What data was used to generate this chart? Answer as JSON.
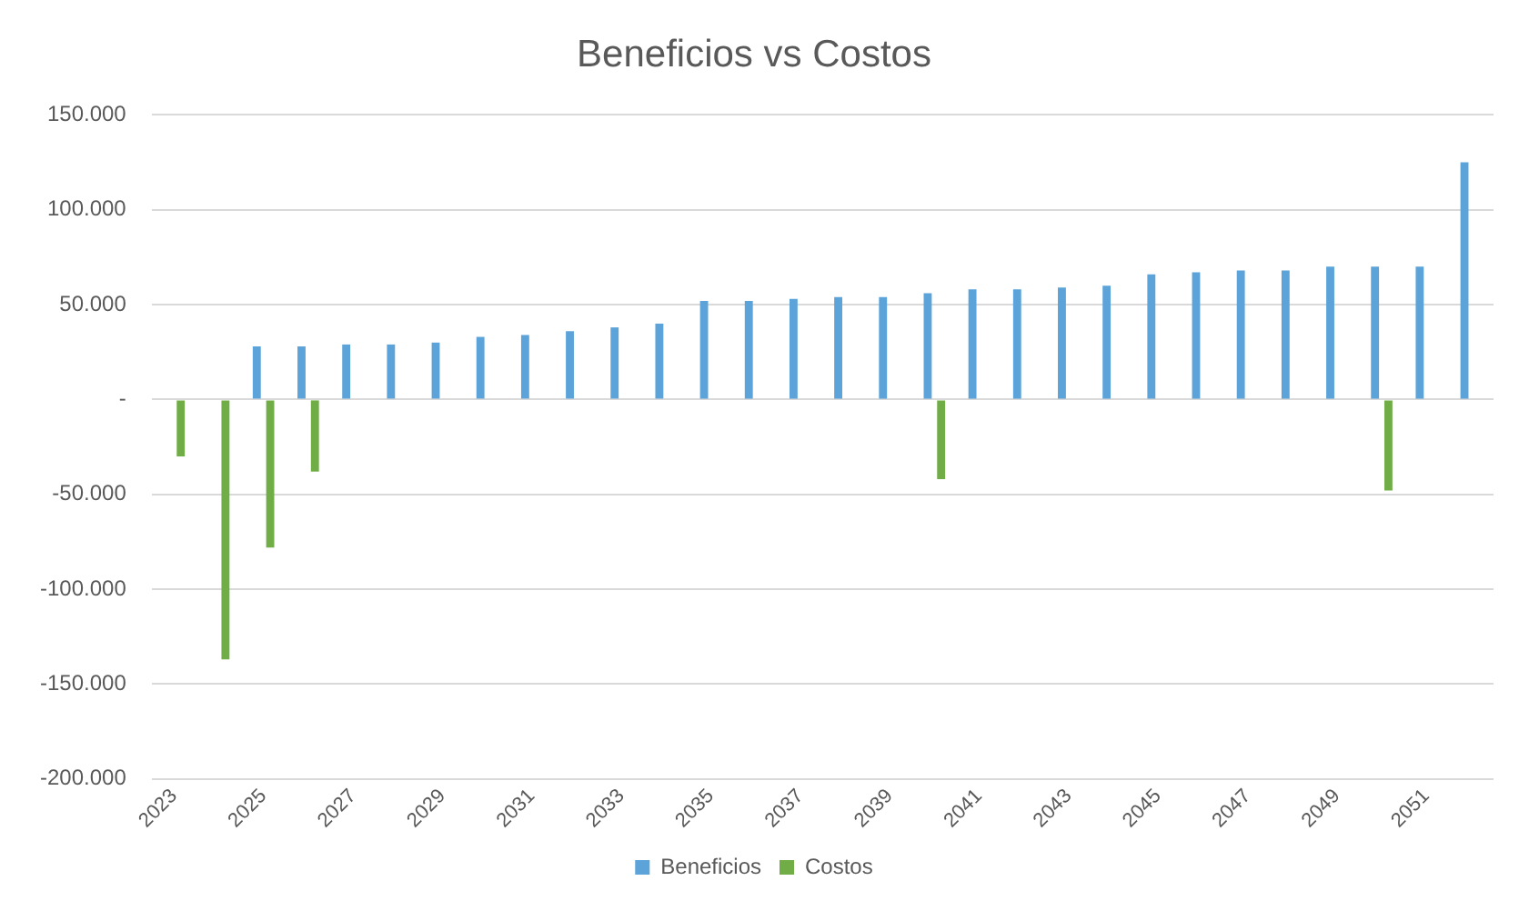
{
  "chart_data": {
    "type": "bar",
    "title": "Beneficios vs Costos",
    "categories": [
      "2023",
      null,
      "2025",
      null,
      "2027",
      null,
      "2029",
      null,
      "2031",
      null,
      "2033",
      null,
      "2035",
      null,
      "2037",
      null,
      "2039",
      null,
      "2041",
      null,
      "2043",
      null,
      "2045",
      null,
      "2047",
      null,
      "2049",
      null,
      "2051",
      null
    ],
    "series": [
      {
        "name": "Beneficios",
        "color": "#5ba3d9",
        "values": [
          null,
          null,
          28000,
          28000,
          29000,
          29000,
          30000,
          33000,
          34000,
          36000,
          38000,
          40000,
          52000,
          52000,
          53000,
          54000,
          54000,
          56000,
          58000,
          58000,
          59000,
          60000,
          66000,
          67000,
          68000,
          68000,
          70000,
          70000,
          70000,
          125000
        ]
      },
      {
        "name": "Costos",
        "color": "#70ad47",
        "values": [
          -30000,
          -137000,
          -78000,
          -38000,
          null,
          null,
          null,
          null,
          null,
          null,
          null,
          null,
          null,
          null,
          null,
          null,
          null,
          -42000,
          null,
          null,
          null,
          null,
          null,
          null,
          null,
          null,
          null,
          -48000,
          null,
          null
        ]
      }
    ],
    "ylim": [
      -200000,
      150000
    ],
    "yticks": [
      {
        "value": -200000,
        "label": "-200.000"
      },
      {
        "value": -150000,
        "label": "-150.000"
      },
      {
        "value": -100000,
        "label": "-100.000"
      },
      {
        "value": -50000,
        "label": "-50.000"
      },
      {
        "value": 0,
        "label": "-"
      },
      {
        "value": 50000,
        "label": "50.000"
      },
      {
        "value": 100000,
        "label": "100.000"
      },
      {
        "value": 150000,
        "label": "150.000"
      }
    ],
    "grid": "y",
    "legend": "bottom"
  }
}
